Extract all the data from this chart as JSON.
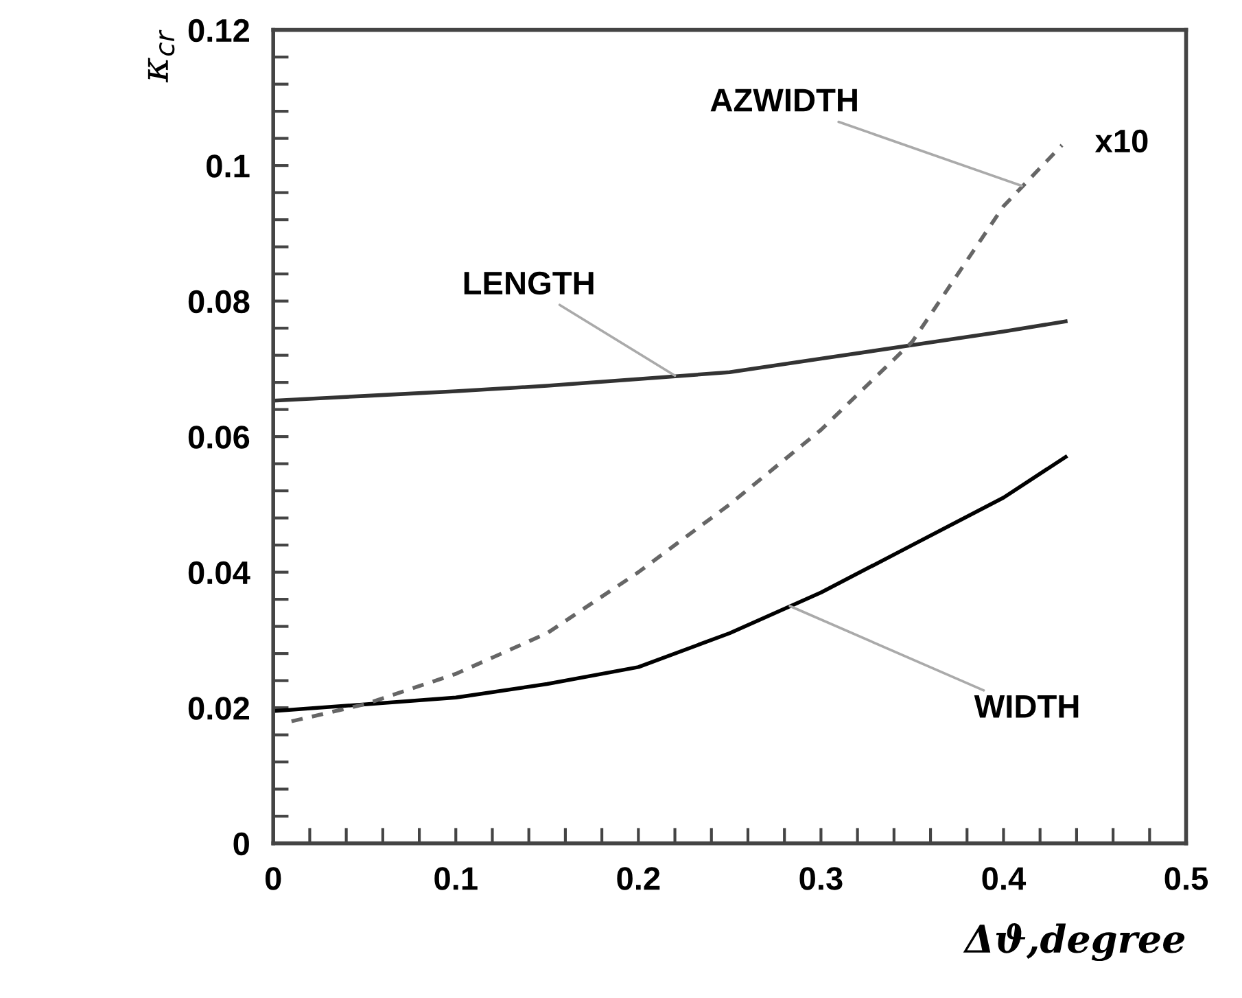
{
  "chart_data": {
    "type": "line",
    "xlabel": "Δϑ,degree",
    "ylabel": "κ$_{cr}$",
    "xlim": [
      0,
      0.5
    ],
    "ylim": [
      0,
      0.12
    ],
    "xticks": [
      0,
      0.1,
      0.2,
      0.3,
      0.4,
      0.5
    ],
    "yticks": [
      0,
      0.02,
      0.04,
      0.06,
      0.08,
      0.1,
      0.12
    ],
    "grid": false,
    "marker": "none",
    "series": [
      {
        "color": "#333333",
        "line_style": "solid",
        "x": [
          0,
          0.05,
          0.1,
          0.15,
          0.2,
          0.25,
          0.3,
          0.35,
          0.4,
          0.434
        ],
        "values": [
          0.0653,
          0.066,
          0.0667,
          0.0675,
          0.0685,
          0.0695,
          0.0715,
          0.0735,
          0.0755,
          0.077
        ]
      },
      {
        "color": "#000000",
        "line_style": "solid",
        "x": [
          0,
          0.05,
          0.1,
          0.15,
          0.2,
          0.25,
          0.3,
          0.35,
          0.4,
          0.434
        ],
        "values": [
          0.0195,
          0.0205,
          0.0215,
          0.0235,
          0.026,
          0.031,
          0.037,
          0.044,
          0.051,
          0.057
        ]
      },
      {
        "color": "#666666",
        "line_style": "dashed",
        "x": [
          0.01,
          0.05,
          0.1,
          0.15,
          0.2,
          0.25,
          0.3,
          0.35,
          0.4,
          0.432
        ],
        "values": [
          0.018,
          0.0205,
          0.025,
          0.031,
          0.04,
          0.05,
          0.061,
          0.074,
          0.094,
          0.103
        ]
      }
    ],
    "annotations": [
      {
        "text": "LENGTH",
        "x": 0.22,
        "y": 0.069
      },
      {
        "text": "WIDTH",
        "x": 0.283,
        "y": 0.035
      },
      {
        "text": "AZWIDTH",
        "x": 0.41,
        "y": 0.097
      },
      "x10"
    ]
  }
}
